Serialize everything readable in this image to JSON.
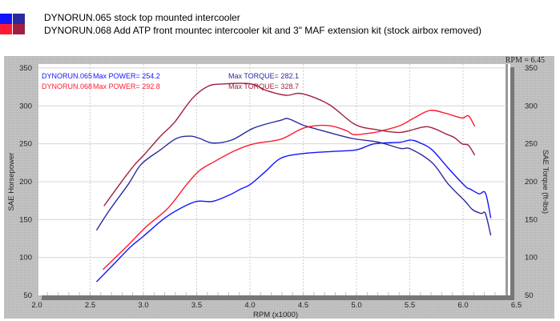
{
  "legend_header": {
    "runs": [
      {
        "label": "DYNORUN.065 stock top mounted intercooler",
        "hp_color": "#1414ff",
        "tq_color": "#2a2a9c"
      },
      {
        "label": "DYNORUN.068 Add ATP front mountec intercooler kit and 3\" MAF extension kit (stock airbox removed)",
        "hp_color": "#ff1a33",
        "tq_color": "#a0203f"
      }
    ]
  },
  "chart_data": {
    "type": "line",
    "title": "",
    "xlabel": "RPM (x1000)",
    "ylabel_left": "SAE Horsepower",
    "ylabel_right": "SAE Torque (ft-lbs)",
    "xlim": [
      2.0,
      6.5
    ],
    "ylim": [
      50,
      350
    ],
    "x_ticks": [
      "2.0",
      "2.5",
      "3.0",
      "3.5",
      "4.0",
      "4.5",
      "5.0",
      "5.5",
      "6.0",
      "6.5"
    ],
    "y_ticks": [
      "50",
      "100",
      "150",
      "200",
      "250",
      "300",
      "350"
    ],
    "grid": true,
    "rpm_readout": "RPM = 6.45",
    "annotations": [
      {
        "run": "DYNORUN.065",
        "power": "Max POWER= 254.2",
        "torque": "Max TORQUE= 282.1",
        "color": "#1414ff"
      },
      {
        "run": "DYNORUN.068",
        "power": "Max POWER= 292.8",
        "torque": "Max TORQUE= 328.7",
        "color": "#ff1a33",
        "torque_color": "#a0203f"
      }
    ],
    "series": [
      {
        "name": "DYNORUN.065 Horsepower",
        "color": "#1414ff",
        "points": [
          [
            2.56,
            68
          ],
          [
            2.7,
            88
          ],
          [
            2.88,
            114
          ],
          [
            3.0,
            128
          ],
          [
            3.2,
            152
          ],
          [
            3.35,
            165
          ],
          [
            3.5,
            174
          ],
          [
            3.65,
            174
          ],
          [
            3.8,
            182
          ],
          [
            3.91,
            190
          ],
          [
            4.01,
            197
          ],
          [
            4.15,
            214
          ],
          [
            4.29,
            231
          ],
          [
            4.49,
            237
          ],
          [
            4.79,
            240
          ],
          [
            5.0,
            242
          ],
          [
            5.17,
            250
          ],
          [
            5.41,
            252
          ],
          [
            5.51,
            255
          ],
          [
            5.6,
            251
          ],
          [
            5.71,
            242
          ],
          [
            5.86,
            218
          ],
          [
            6.02,
            194
          ],
          [
            6.07,
            190
          ],
          [
            6.15,
            184
          ],
          [
            6.21,
            185
          ],
          [
            6.26,
            152
          ]
        ]
      },
      {
        "name": "DYNORUN.065 Torque",
        "color": "#2a2a9c",
        "points": [
          [
            2.56,
            136
          ],
          [
            2.68,
            162
          ],
          [
            2.86,
            197
          ],
          [
            2.98,
            223
          ],
          [
            3.16,
            242
          ],
          [
            3.31,
            257
          ],
          [
            3.44,
            260
          ],
          [
            3.53,
            257
          ],
          [
            3.65,
            251
          ],
          [
            3.83,
            255
          ],
          [
            4.04,
            271
          ],
          [
            4.29,
            281
          ],
          [
            4.36,
            283
          ],
          [
            4.51,
            274
          ],
          [
            4.74,
            265
          ],
          [
            4.96,
            257
          ],
          [
            5.21,
            252
          ],
          [
            5.41,
            244
          ],
          [
            5.51,
            243
          ],
          [
            5.71,
            225
          ],
          [
            5.86,
            197
          ],
          [
            6.02,
            174
          ],
          [
            6.09,
            163
          ],
          [
            6.17,
            158
          ],
          [
            6.21,
            158
          ],
          [
            6.26,
            129
          ]
        ]
      },
      {
        "name": "DYNORUN.068 Horsepower",
        "color": "#ff1a33",
        "points": [
          [
            2.62,
            84
          ],
          [
            2.84,
            114
          ],
          [
            3.03,
            141
          ],
          [
            3.23,
            165
          ],
          [
            3.41,
            197
          ],
          [
            3.53,
            215
          ],
          [
            3.66,
            226
          ],
          [
            3.86,
            241
          ],
          [
            4.04,
            250
          ],
          [
            4.29,
            256
          ],
          [
            4.51,
            271
          ],
          [
            4.74,
            274
          ],
          [
            4.91,
            267
          ],
          [
            4.98,
            262
          ],
          [
            5.17,
            265
          ],
          [
            5.26,
            268
          ],
          [
            5.41,
            274
          ],
          [
            5.54,
            284
          ],
          [
            5.69,
            294
          ],
          [
            5.84,
            290
          ],
          [
            5.99,
            284
          ],
          [
            6.05,
            287
          ],
          [
            6.11,
            273
          ]
        ]
      },
      {
        "name": "DYNORUN.068 Torque",
        "color": "#a0203f",
        "points": [
          [
            2.63,
            168
          ],
          [
            2.78,
            197
          ],
          [
            2.91,
            221
          ],
          [
            3.01,
            236
          ],
          [
            3.16,
            260
          ],
          [
            3.29,
            278
          ],
          [
            3.46,
            310
          ],
          [
            3.61,
            326
          ],
          [
            3.76,
            329
          ],
          [
            4.01,
            329
          ],
          [
            4.16,
            320
          ],
          [
            4.34,
            314
          ],
          [
            4.49,
            316
          ],
          [
            4.74,
            302
          ],
          [
            4.98,
            276
          ],
          [
            5.17,
            269
          ],
          [
            5.41,
            265
          ],
          [
            5.62,
            272
          ],
          [
            5.71,
            271
          ],
          [
            5.84,
            263
          ],
          [
            5.92,
            258
          ],
          [
            5.99,
            250
          ],
          [
            6.05,
            248
          ],
          [
            6.11,
            235
          ]
        ]
      }
    ]
  }
}
